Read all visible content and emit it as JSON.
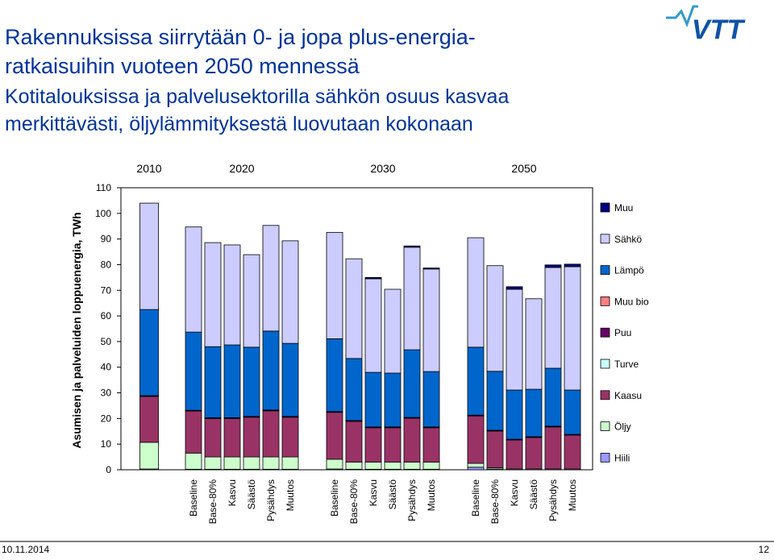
{
  "header": {
    "title_lines": [
      "Rakennuksissa siirrytään 0- ja jopa plus-energia-",
      "ratkaisuihin vuoteen 2050 mennessä"
    ],
    "subtitle_lines": [
      "Kotitalouksissa ja palvelusektorilla sähkön osuus kasvaa",
      "merkittävästi, öljylämmityksestä luovutaan kokonaan"
    ],
    "logo": "VTT"
  },
  "footer": {
    "date": "10.11.2014",
    "page": "12"
  },
  "chart_data": {
    "type": "stacked-bar",
    "y_label": "Asumisen ja palveluiden loppuenergia, TWh",
    "groups": [
      {
        "label": "2010",
        "categories": [
          null
        ]
      },
      {
        "label": "2020",
        "categories": [
          "Baseline",
          "Base-80%",
          "Kasvu",
          "Säästö",
          "Pysähdys",
          "Muutos"
        ]
      },
      {
        "label": "2030",
        "categories": [
          "Baseline",
          "Base-80%",
          "Kasvu",
          "Säästö",
          "Pysähdys",
          "Muutos"
        ]
      },
      {
        "label": "2050",
        "categories": [
          "Baseline",
          "Base-80%",
          "Kasvu",
          "Säästö",
          "Pysähdys",
          "Muutos"
        ]
      }
    ],
    "ylim": [
      0,
      110
    ],
    "yticks": [
      0,
      10,
      20,
      30,
      40,
      50,
      60,
      70,
      80,
      90,
      100,
      110
    ],
    "series": [
      {
        "name": "Hiili",
        "color": "#9999ff",
        "values": [
          0.3,
          0.2,
          0.2,
          0.2,
          0.2,
          0.2,
          0.2,
          0.3,
          0.2,
          0.2,
          0.2,
          0.2,
          0.2,
          1,
          0.3,
          0,
          0,
          0,
          0
        ]
      },
      {
        "name": "Öljy",
        "color": "#ccffcc",
        "values": [
          10.4,
          6.3,
          4.8,
          4.8,
          4.8,
          4.8,
          4.8,
          3.8,
          2.8,
          2.8,
          2.8,
          2.8,
          2.8,
          1.5,
          0.5,
          0.3,
          0.3,
          0.3,
          0.3
        ]
      },
      {
        "name": "Kaasu",
        "color": "#993366",
        "values": [
          17.9,
          16.4,
          15,
          15,
          15.5,
          18,
          15.5,
          18.3,
          15.9,
          13.4,
          13.4,
          17.1,
          13.4,
          18.5,
          14.3,
          11.3,
          12.3,
          16.4,
          13.2
        ]
      },
      {
        "name": "Turve",
        "color": "#ccffff",
        "values": [
          0,
          0,
          0,
          0,
          0,
          0,
          0,
          0,
          0,
          0,
          0,
          0,
          0,
          0,
          0,
          0,
          0,
          0,
          0
        ]
      },
      {
        "name": "Puu",
        "color": "#660066",
        "values": [
          0.3,
          0.3,
          0.3,
          0.3,
          0.3,
          0.3,
          0.3,
          0.3,
          0.3,
          0.3,
          0.3,
          0.3,
          0.3,
          0.3,
          0.3,
          0.3,
          0.3,
          0.3,
          0.3
        ]
      },
      {
        "name": "Muu bio",
        "color": "#ff8080",
        "values": [
          0,
          0,
          0,
          0,
          0,
          0,
          0,
          0,
          0,
          0,
          0,
          0,
          0,
          0,
          0,
          0,
          0,
          0,
          0
        ]
      },
      {
        "name": "Lämpö",
        "color": "#0066cc",
        "values": [
          33.6,
          30.5,
          27.7,
          28.4,
          27,
          30.8,
          28.5,
          28.4,
          24.2,
          21.3,
          21,
          26.4,
          21.6,
          26.5,
          23,
          19.2,
          18.5,
          22.6,
          17.3
        ]
      },
      {
        "name": "Sähkö",
        "color": "#ccccff",
        "values": [
          41.5,
          41,
          40.6,
          39,
          36.1,
          41.2,
          40,
          41.5,
          38.9,
          36.5,
          32.7,
          40,
          40,
          42.7,
          41.2,
          39.3,
          35.3,
          39.3,
          48.1
        ]
      },
      {
        "name": "Muu",
        "color": "#000080",
        "values": [
          0,
          0,
          0,
          0,
          0,
          0,
          0,
          0,
          0,
          0.5,
          0,
          0.5,
          0.4,
          0,
          0,
          1,
          0,
          1,
          1
        ]
      }
    ]
  }
}
